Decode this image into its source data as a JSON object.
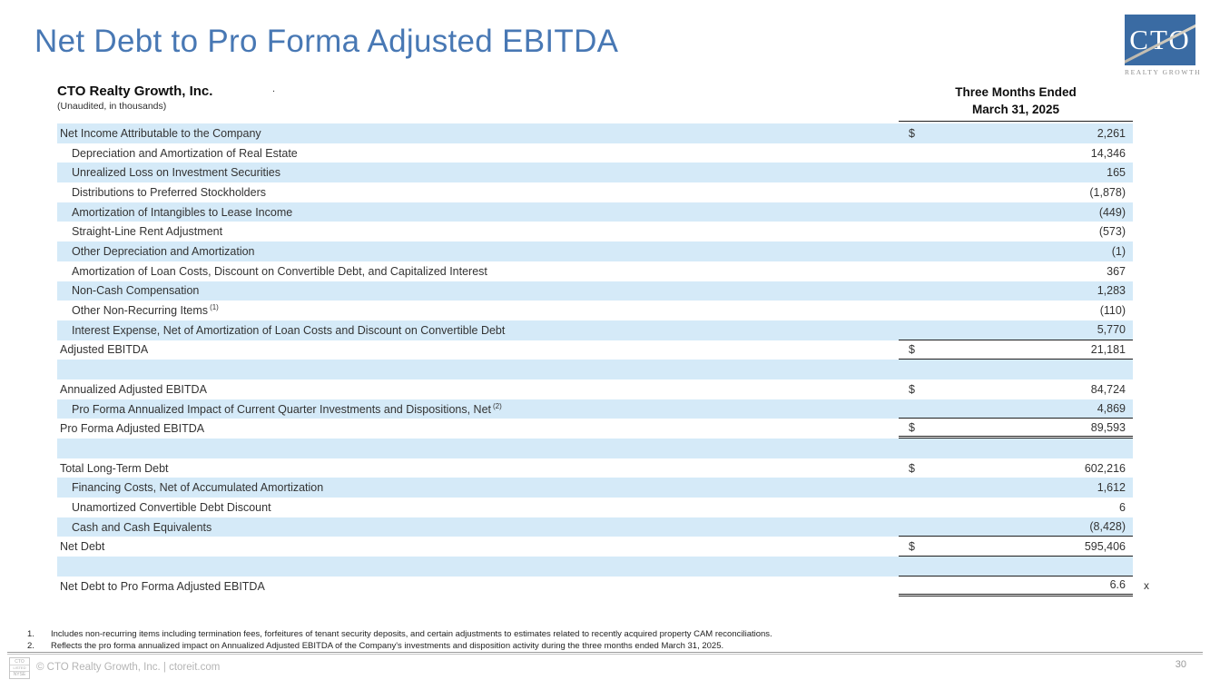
{
  "slide": {
    "title": "Net Debt to Pro Forma Adjusted EBITDA",
    "page_number": "30",
    "footer_text": "© CTO Realty Growth, Inc. | ctoreit.com",
    "nyse_badge": {
      "line1": "CTO",
      "line2": "LISTED",
      "line3": "NYSE"
    }
  },
  "logo": {
    "acronym": "CTO",
    "caption": "REALTY GROWTH"
  },
  "colors": {
    "title_blue": "#4878b4",
    "row_band_blue": "#d5eaf8",
    "logo_blue": "#3a6ba3",
    "rule_black": "#1f1f1f"
  },
  "table": {
    "company": "CTO Realty Growth, Inc.",
    "subtitle": "(Unaudited, in thousands)",
    "header_mark": ".",
    "period_line1": "Three Months Ended",
    "period_line2": "March 31, 2025",
    "rows": [
      {
        "label": "Net Income Attributable to the Company",
        "sup": "",
        "indent": false,
        "blue": true,
        "dollar": "$",
        "value": "2,261",
        "suffix": "",
        "line_below": "none"
      },
      {
        "label": "Depreciation and Amortization of Real Estate",
        "sup": "",
        "indent": true,
        "blue": false,
        "dollar": "",
        "value": "14,346",
        "suffix": "",
        "line_below": "none"
      },
      {
        "label": "Unrealized Loss on Investment Securities",
        "sup": "",
        "indent": true,
        "blue": true,
        "dollar": "",
        "value": "165",
        "suffix": "",
        "line_below": "none"
      },
      {
        "label": "Distributions to Preferred Stockholders",
        "sup": "",
        "indent": true,
        "blue": false,
        "dollar": "",
        "value": "(1,878)",
        "suffix": "",
        "line_below": "none"
      },
      {
        "label": "Amortization of Intangibles to Lease Income",
        "sup": "",
        "indent": true,
        "blue": true,
        "dollar": "",
        "value": "(449)",
        "suffix": "",
        "line_below": "none"
      },
      {
        "label": "Straight-Line Rent Adjustment",
        "sup": "",
        "indent": true,
        "blue": false,
        "dollar": "",
        "value": "(573)",
        "suffix": "",
        "line_below": "none"
      },
      {
        "label": "Other Depreciation and Amortization",
        "sup": "",
        "indent": true,
        "blue": true,
        "dollar": "",
        "value": "(1)",
        "suffix": "",
        "line_below": "none"
      },
      {
        "label": "Amortization of Loan Costs, Discount on Convertible Debt, and Capitalized Interest",
        "sup": "",
        "indent": true,
        "blue": false,
        "dollar": "",
        "value": "367",
        "suffix": "",
        "line_below": "none"
      },
      {
        "label": "Non-Cash Compensation",
        "sup": "",
        "indent": true,
        "blue": true,
        "dollar": "",
        "value": "1,283",
        "suffix": "",
        "line_below": "none"
      },
      {
        "label": "Other Non-Recurring Items",
        "sup": "(1)",
        "indent": true,
        "blue": false,
        "dollar": "",
        "value": "(110)",
        "suffix": "",
        "line_below": "none"
      },
      {
        "label": "Interest Expense, Net of Amortization of Loan Costs and Discount on Convertible Debt",
        "sup": "",
        "indent": true,
        "blue": true,
        "dollar": "",
        "value": "5,770",
        "suffix": "",
        "line_below": "single"
      },
      {
        "label": "Adjusted EBITDA",
        "sup": "",
        "indent": false,
        "blue": false,
        "dollar": "$",
        "value": "21,181",
        "suffix": "",
        "line_below": "single"
      },
      {
        "label": "",
        "sup": "",
        "indent": false,
        "blue": true,
        "dollar": "",
        "value": "",
        "suffix": "",
        "line_below": "none"
      },
      {
        "label": "Annualized Adjusted EBITDA",
        "sup": "",
        "indent": false,
        "blue": false,
        "dollar": "$",
        "value": "84,724",
        "suffix": "",
        "line_below": "none"
      },
      {
        "label": "Pro Forma Annualized Impact of Current Quarter Investments and Dispositions, Net",
        "sup": "(2)",
        "indent": true,
        "blue": true,
        "dollar": "",
        "value": "4,869",
        "suffix": "",
        "line_below": "single"
      },
      {
        "label": "Pro Forma Adjusted EBITDA",
        "sup": "",
        "indent": false,
        "blue": false,
        "dollar": "$",
        "value": "89,593",
        "suffix": "",
        "line_below": "double"
      },
      {
        "label": "",
        "sup": "",
        "indent": false,
        "blue": true,
        "dollar": "",
        "value": "",
        "suffix": "",
        "line_below": "none"
      },
      {
        "label": "Total Long-Term Debt",
        "sup": "",
        "indent": false,
        "blue": false,
        "dollar": "$",
        "value": "602,216",
        "suffix": "",
        "line_below": "none"
      },
      {
        "label": "Financing Costs, Net of Accumulated Amortization",
        "sup": "",
        "indent": true,
        "blue": true,
        "dollar": "",
        "value": "1,612",
        "suffix": "",
        "line_below": "none"
      },
      {
        "label": "Unamortized Convertible Debt Discount",
        "sup": "",
        "indent": true,
        "blue": false,
        "dollar": "",
        "value": "6",
        "suffix": "",
        "line_below": "none"
      },
      {
        "label": "Cash and Cash Equivalents",
        "sup": "",
        "indent": true,
        "blue": true,
        "dollar": "",
        "value": "(8,428)",
        "suffix": "",
        "line_below": "single"
      },
      {
        "label": "Net Debt",
        "sup": "",
        "indent": false,
        "blue": false,
        "dollar": "$",
        "value": "595,406",
        "suffix": "",
        "line_below": "single"
      },
      {
        "label": "",
        "sup": "",
        "indent": false,
        "blue": true,
        "dollar": "",
        "value": "",
        "suffix": "",
        "line_below": "single"
      },
      {
        "label": "Net Debt to Pro Forma Adjusted EBITDA",
        "sup": "",
        "indent": false,
        "blue": false,
        "dollar": "",
        "value": "6.6",
        "suffix": "x",
        "line_below": "double"
      }
    ]
  },
  "footnotes": [
    {
      "num": "1.",
      "text": "Includes non-recurring items including termination fees, forfeitures of tenant security deposits, and certain adjustments to estimates related to recently acquired property CAM reconciliations."
    },
    {
      "num": "2.",
      "text": "Reflects the pro forma annualized impact on Annualized Adjusted EBITDA of the Company's investments and disposition activity during the three months ended March 31, 2025."
    }
  ]
}
